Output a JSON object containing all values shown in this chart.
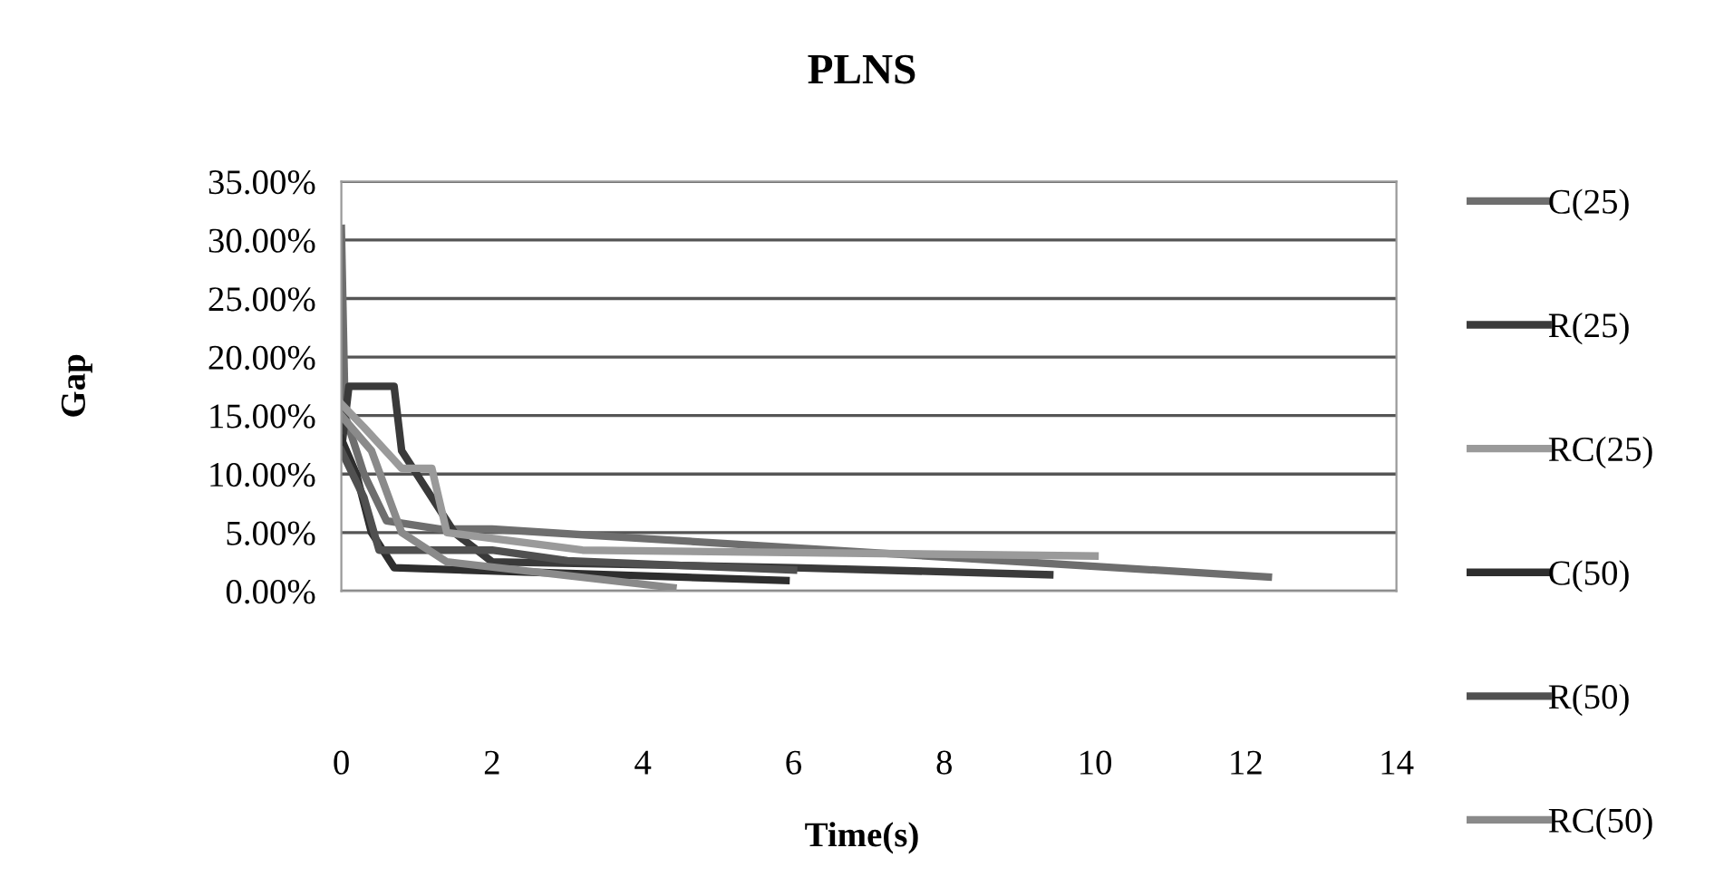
{
  "chart_data": {
    "type": "line",
    "title": "PLNS",
    "xlabel": "Time(s)",
    "ylabel": "Gap",
    "xlim": [
      0,
      14
    ],
    "xticks": [
      0,
      2,
      4,
      6,
      8,
      10,
      12,
      14
    ],
    "ylim": [
      0,
      35
    ],
    "yticks": [
      {
        "value": 0,
        "label": "0.00%"
      },
      {
        "value": 5,
        "label": "5.00%"
      },
      {
        "value": 10,
        "label": "10.00%"
      },
      {
        "value": 15,
        "label": "15.00%"
      },
      {
        "value": 20,
        "label": "20.00%"
      },
      {
        "value": 25,
        "label": "25.00%"
      },
      {
        "value": 30,
        "label": "30.00%"
      },
      {
        "value": 35,
        "label": "35.00%"
      }
    ],
    "grid": "y",
    "legend": "right",
    "marker": "none",
    "line_style": "solid",
    "series": [
      {
        "name": "C(25)",
        "color": "#6e6e6e",
        "x": [
          0,
          0.05,
          0.3,
          0.6,
          1.3,
          2,
          4,
          12.3
        ],
        "values": [
          31,
          15,
          10,
          6,
          5.3,
          5.3,
          4.5,
          1.2
        ]
      },
      {
        "name": "R(25)",
        "color": "#3a3a3a",
        "x": [
          0,
          0.1,
          0.7,
          0.8,
          1.5,
          2,
          6,
          9.4
        ],
        "values": [
          12,
          17.5,
          17.5,
          12,
          5,
          2.5,
          2,
          1.4
        ]
      },
      {
        "name": "RC(25)",
        "color": "#9a9a9a",
        "x": [
          0,
          0.3,
          0.8,
          1.2,
          1.4,
          3.2,
          10
        ],
        "values": [
          16,
          14,
          10.5,
          10.5,
          5,
          3.5,
          3
        ]
      },
      {
        "name": "C(50)",
        "color": "#2e2e2e",
        "x": [
          0,
          0.2,
          0.4,
          0.7,
          5.9
        ],
        "values": [
          13,
          10,
          5,
          2,
          0.9
        ]
      },
      {
        "name": "R(50)",
        "color": "#505050",
        "x": [
          0,
          0.3,
          0.5,
          2,
          3,
          6
        ],
        "values": [
          12,
          8,
          3.5,
          3.5,
          2.6,
          1.8
        ]
      },
      {
        "name": "RC(50)",
        "color": "#8a8a8a",
        "x": [
          0,
          0.4,
          0.8,
          1.4,
          4.4
        ],
        "values": [
          15,
          12,
          5,
          2.5,
          0.3
        ]
      }
    ]
  }
}
